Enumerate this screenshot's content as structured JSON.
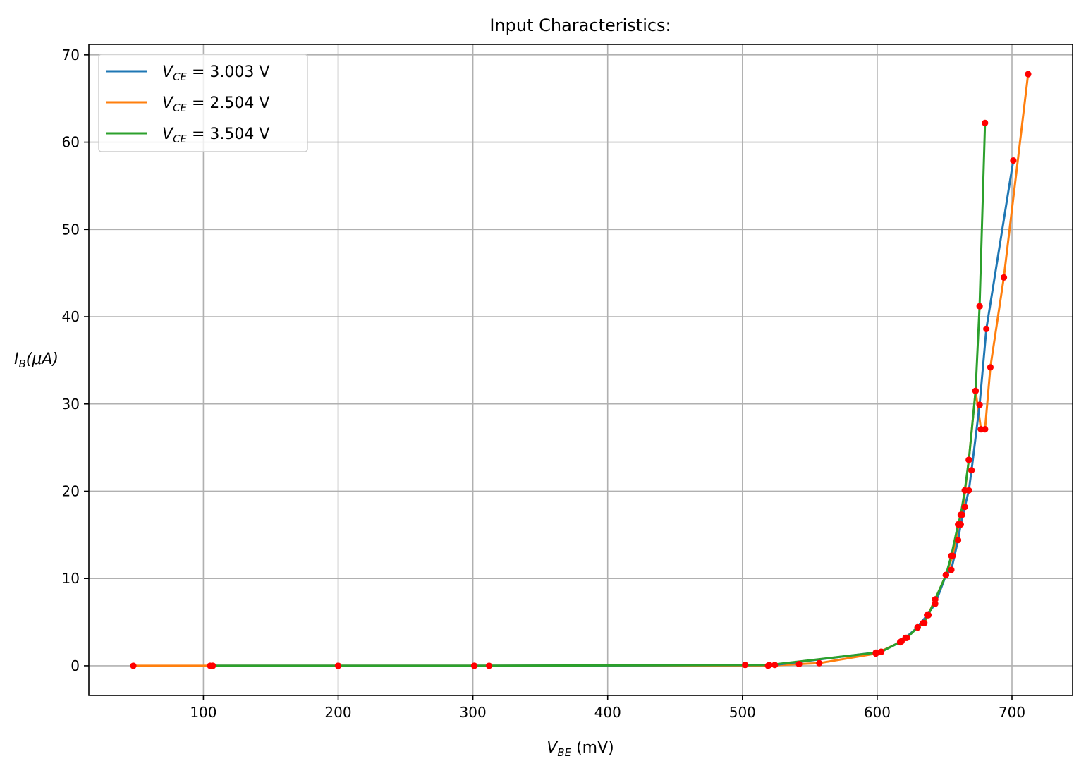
{
  "chart_data": {
    "type": "line",
    "title": "Input Characteristics:",
    "xlabel": {
      "main": "V",
      "sub": "BE",
      "unit": " (mV)"
    },
    "ylabel": {
      "main": "I",
      "sub": "B",
      "unit": "(μA)"
    },
    "xlim": [
      15,
      745
    ],
    "ylim": [
      -3.4,
      71.2
    ],
    "xticks": [
      100,
      200,
      300,
      400,
      500,
      600,
      700
    ],
    "yticks": [
      0,
      10,
      20,
      30,
      40,
      50,
      60,
      70
    ],
    "grid": true,
    "legend_position": "top-left",
    "marker_color": "#ff0000",
    "series": [
      {
        "name": {
          "main": "V",
          "sub": "CE",
          "rest": " = 3.003 V"
        },
        "color": "#1f77b4",
        "x": [
          107,
          200,
          312,
          524,
          603,
          618,
          630,
          637,
          643,
          651,
          655,
          660,
          662,
          665,
          668,
          670,
          676,
          681,
          701
        ],
        "y": [
          0.0,
          0.0,
          0.0,
          0.1,
          1.6,
          2.8,
          4.4,
          5.8,
          7.1,
          10.4,
          11.0,
          14.4,
          16.2,
          18.2,
          20.1,
          22.4,
          29.9,
          38.6,
          57.9
        ]
      },
      {
        "name": {
          "main": "V",
          "sub": "CE",
          "rest": " = 2.504 V"
        },
        "color": "#ff7f0e",
        "x": [
          48,
          105,
          301,
          519,
          542,
          557,
          599,
          617,
          621,
          630,
          635,
          643,
          651,
          656,
          663,
          668,
          673,
          677,
          680,
          684,
          694,
          712
        ],
        "y": [
          0.0,
          0.0,
          0.0,
          0.0,
          0.2,
          0.3,
          1.4,
          2.7,
          3.2,
          4.4,
          4.9,
          7.6,
          10.4,
          12.6,
          17.3,
          23.6,
          31.5,
          27.1,
          27.1,
          34.2,
          44.5,
          67.8
        ]
      },
      {
        "name": {
          "main": "V",
          "sub": "CE",
          "rest": " = 3.504 V"
        },
        "color": "#2ca02c",
        "x": [
          107,
          200,
          301,
          502,
          520,
          599,
          603,
          618,
          622,
          630,
          634,
          638,
          643,
          651,
          655,
          660,
          662,
          665,
          668,
          673,
          676,
          680
        ],
        "y": [
          0.0,
          0.0,
          0.0,
          0.1,
          0.1,
          1.5,
          1.6,
          2.8,
          3.2,
          4.4,
          4.9,
          5.8,
          7.6,
          10.4,
          12.6,
          16.2,
          17.3,
          20.1,
          23.6,
          31.5,
          41.2,
          62.2
        ]
      }
    ]
  }
}
